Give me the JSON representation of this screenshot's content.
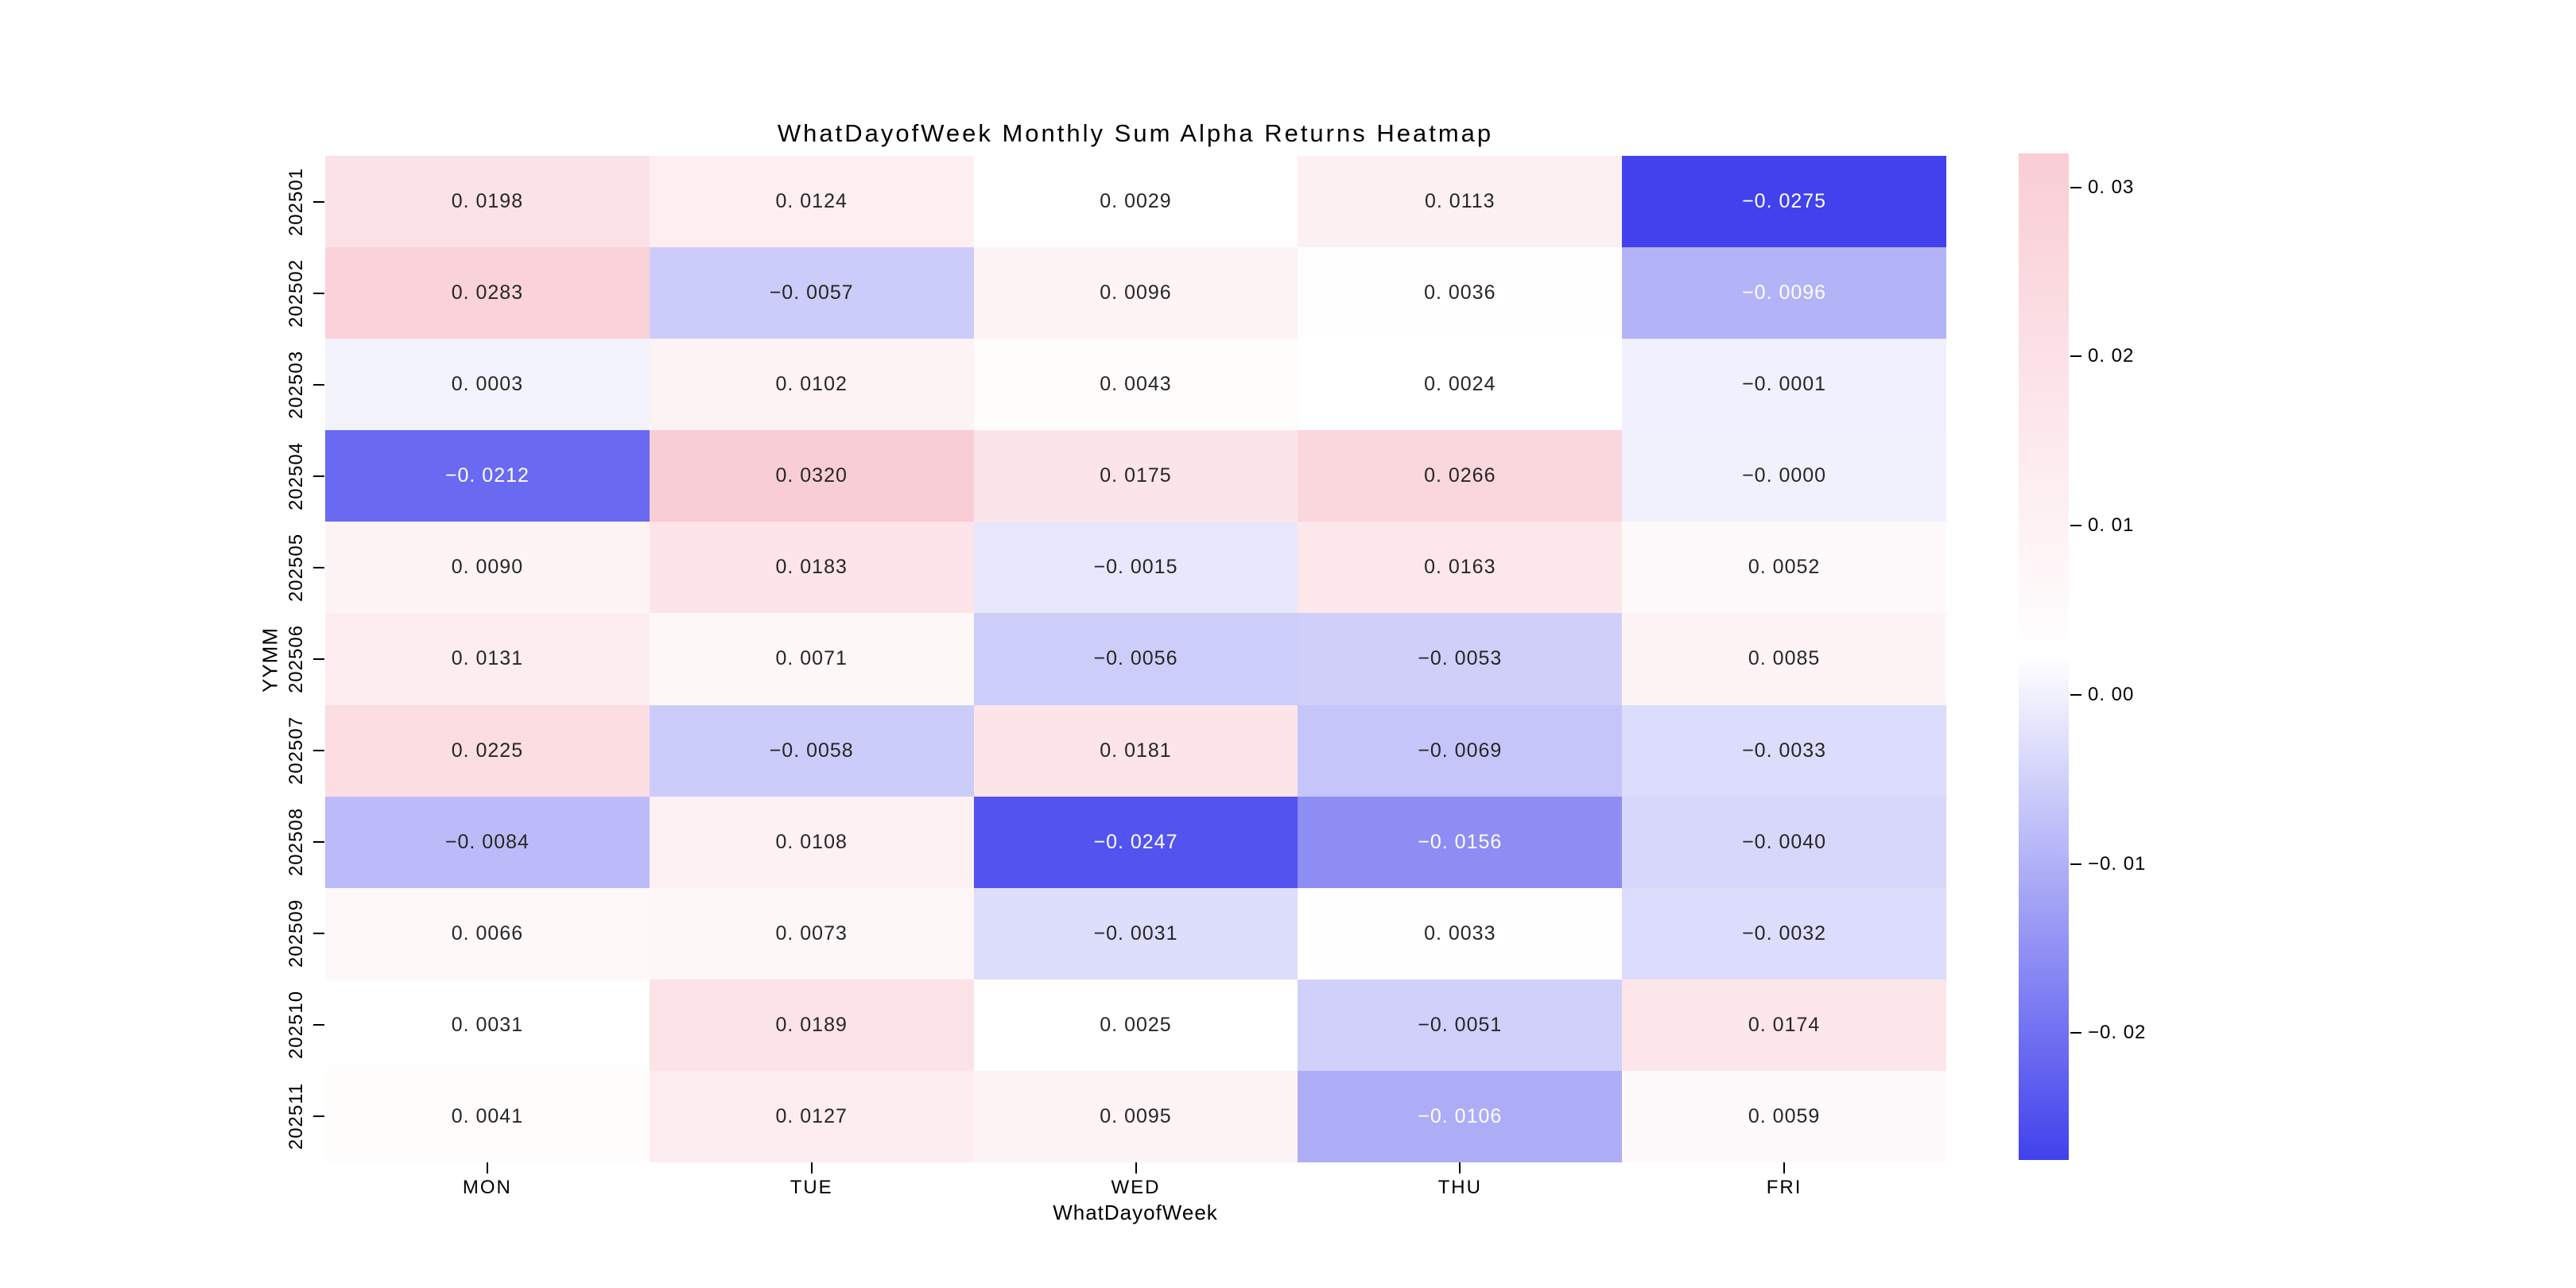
{
  "figure": {
    "title": "WhatDayofWeek Monthly Sum Alpha Returns Heatmap",
    "xlabel": "WhatDayofWeek",
    "ylabel": "YYMM"
  },
  "chart_data": {
    "type": "heatmap",
    "title": "WhatDayofWeek Monthly Sum Alpha Returns Heatmap",
    "xlabel": "WhatDayofWeek",
    "ylabel": "YYMM",
    "columns": [
      "MON",
      "TUE",
      "WED",
      "THU",
      "FRI"
    ],
    "rows": [
      "202501",
      "202502",
      "202503",
      "202504",
      "202505",
      "202506",
      "202507",
      "202508",
      "202509",
      "202510",
      "202511"
    ],
    "values": [
      [
        0.0198,
        0.0124,
        0.0029,
        0.0113,
        -0.0275
      ],
      [
        0.0283,
        -0.0057,
        0.0096,
        0.0036,
        -0.0096
      ],
      [
        0.0003,
        0.0102,
        0.0043,
        0.0024,
        -0.0001
      ],
      [
        -0.0212,
        0.032,
        0.0175,
        0.0266,
        -0.0
      ],
      [
        0.009,
        0.0183,
        -0.0015,
        0.0163,
        0.0052
      ],
      [
        0.0131,
        0.0071,
        -0.0056,
        -0.0053,
        0.0085
      ],
      [
        0.0225,
        -0.0058,
        0.0181,
        -0.0069,
        -0.0033
      ],
      [
        -0.0084,
        0.0108,
        -0.0247,
        -0.0156,
        -0.004
      ],
      [
        0.0066,
        0.0073,
        -0.0031,
        0.0033,
        -0.0032
      ],
      [
        0.0031,
        0.0189,
        0.0025,
        -0.0051,
        0.0174
      ],
      [
        0.0041,
        0.0127,
        0.0095,
        -0.0106,
        0.0059
      ]
    ],
    "cell_labels": [
      [
        "0. 0198",
        "0. 0124",
        "0. 0029",
        "0. 0113",
        "−0. 0275"
      ],
      [
        "0. 0283",
        "−0. 0057",
        "0. 0096",
        "0. 0036",
        "−0. 0096"
      ],
      [
        "0. 0003",
        "0. 0102",
        "0. 0043",
        "0. 0024",
        "−0. 0001"
      ],
      [
        "−0. 0212",
        "0. 0320",
        "0. 0175",
        "0. 0266",
        "−0. 0000"
      ],
      [
        "0. 0090",
        "0. 0183",
        "−0. 0015",
        "0. 0163",
        "0. 0052"
      ],
      [
        "0. 0131",
        "0. 0071",
        "−0. 0056",
        "−0. 0053",
        "0. 0085"
      ],
      [
        "0. 0225",
        "−0. 0058",
        "0. 0181",
        "−0. 0069",
        "−0. 0033"
      ],
      [
        "−0. 0084",
        "0. 0108",
        "−0. 0247",
        "−0. 0156",
        "−0. 0040"
      ],
      [
        "0. 0066",
        "0. 0073",
        "−0. 0031",
        "0. 0033",
        "−0. 0032"
      ],
      [
        "0. 0031",
        "0. 0189",
        "0. 0025",
        "−0. 0051",
        "0. 0174"
      ],
      [
        "0. 0041",
        "0. 0127",
        "0. 0095",
        "−0. 0106",
        "0. 0059"
      ]
    ],
    "vmin": -0.0275,
    "vmax": 0.032,
    "colorbar_ticks": [
      0.03,
      0.02,
      0.01,
      0.0,
      -0.01,
      -0.02
    ],
    "colorbar_tick_labels": [
      "0. 03",
      "0. 02",
      "0. 01",
      "0. 00",
      "−0. 01",
      "−0. 02"
    ],
    "colors": {
      "positive_max": "#F9CDD5",
      "zero": "#FFFFFF",
      "negative_min": "#4141ED",
      "annot_dark": "#262626",
      "annot_light": "#FFFFFF"
    },
    "annot_white_text_threshold": -0.0095,
    "legend_position": "right-colorbar",
    "grid": false
  }
}
